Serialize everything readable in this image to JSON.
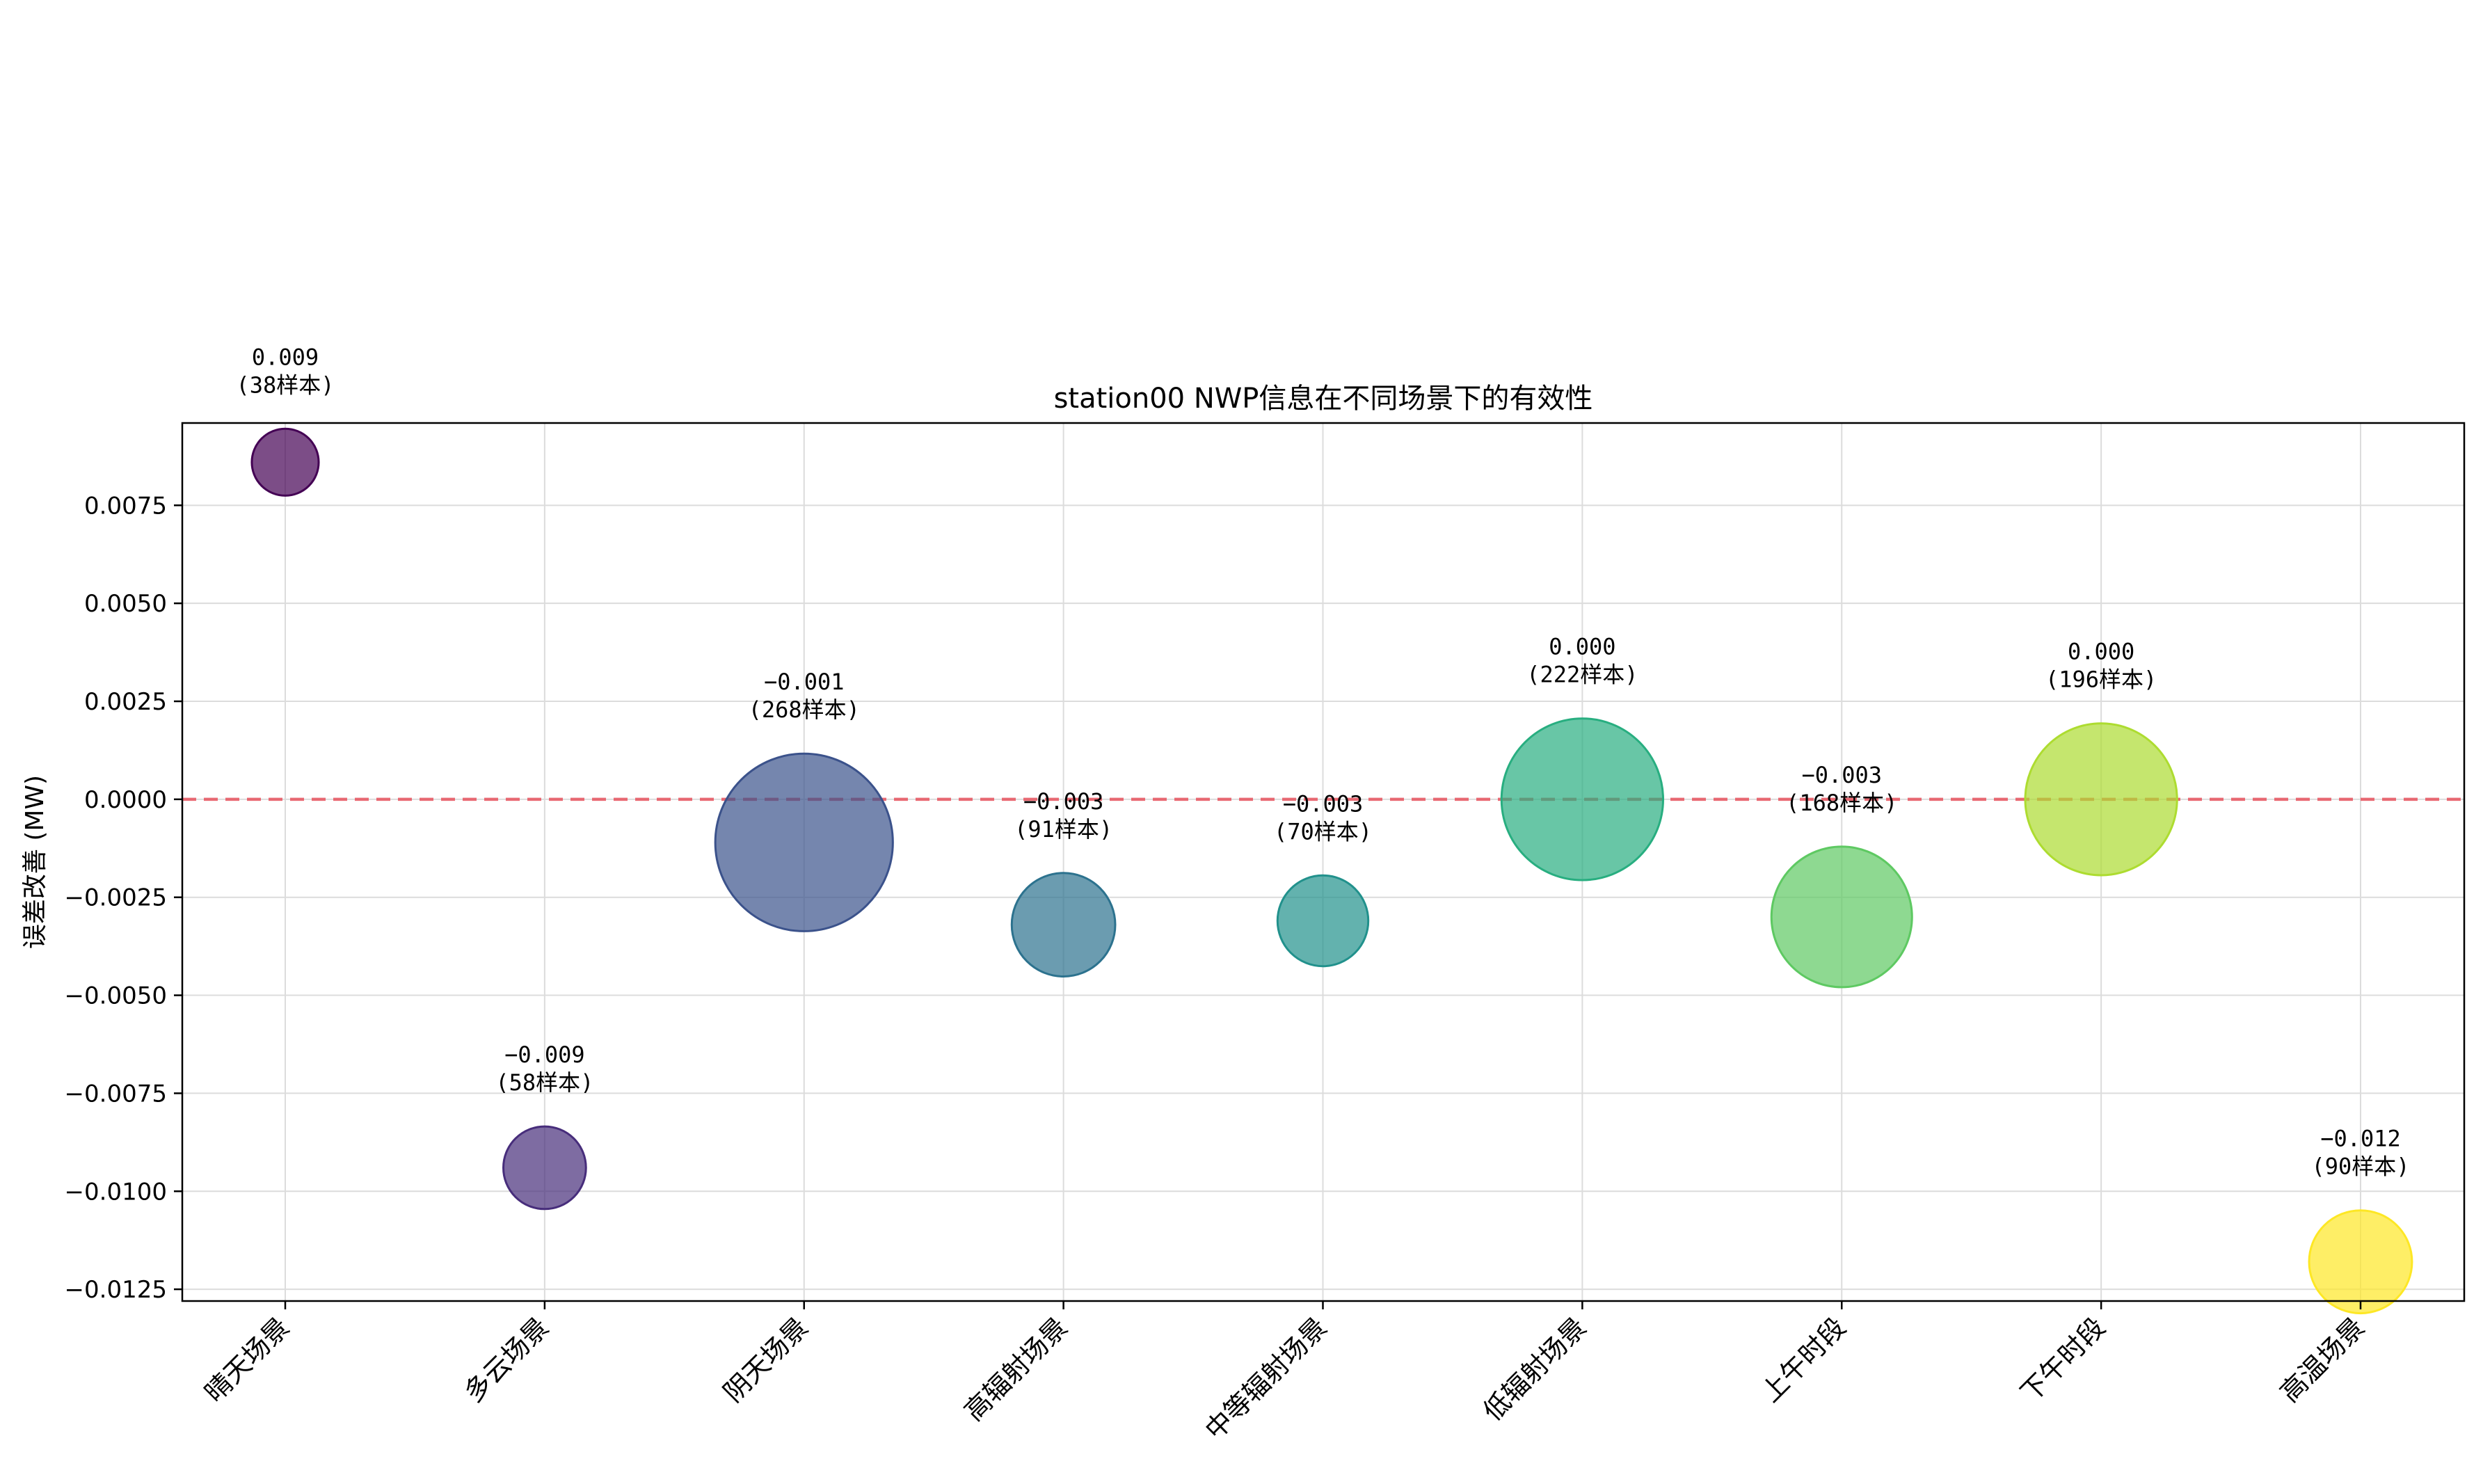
{
  "chart_data": {
    "type": "scatter",
    "title": "station00 NWP信息在不同场景下的有效性",
    "xlabel": "",
    "ylabel": "误差改善 (MW)",
    "ylim": [
      -0.0128,
      0.0096
    ],
    "yticks": [
      0.0075,
      0.005,
      0.0025,
      0.0,
      -0.0025,
      -0.005,
      -0.0075,
      -0.01,
      -0.0125
    ],
    "ytick_labels": [
      "0.0075",
      "0.0050",
      "0.0025",
      "0.0000",
      "−0.0025",
      "−0.0050",
      "−0.0075",
      "−0.0100",
      "−0.0125"
    ],
    "grid": true,
    "reference_line": {
      "y": 0.0,
      "color": "#e8545f",
      "style": "dashed"
    },
    "colormap": "viridis",
    "points": [
      {
        "category": "晴天场景",
        "value": 0.0086,
        "samples": 38,
        "label_value": "0.009",
        "label_samples": "(38样本)",
        "color": "#440154"
      },
      {
        "category": "多云场景",
        "value": -0.0094,
        "samples": 58,
        "label_value": "−0.009",
        "label_samples": "(58样本)",
        "color": "#472d7b"
      },
      {
        "category": "阴天场景",
        "value": -0.0011,
        "samples": 268,
        "label_value": "−0.001",
        "label_samples": "(268样本)",
        "color": "#3b528b"
      },
      {
        "category": "高辐射场景",
        "value": -0.0032,
        "samples": 91,
        "label_value": "−0.003",
        "label_samples": "(91样本)",
        "color": "#2c728e"
      },
      {
        "category": "中等辐射场景",
        "value": -0.0031,
        "samples": 70,
        "label_value": "−0.003",
        "label_samples": "(70样本)",
        "color": "#21918c"
      },
      {
        "category": "低辐射场景",
        "value": 0.0,
        "samples": 222,
        "label_value": "0.000",
        "label_samples": "(222样本)",
        "color": "#28ae80"
      },
      {
        "category": "上午时段",
        "value": -0.003,
        "samples": 168,
        "label_value": "−0.003",
        "label_samples": "(168样本)",
        "color": "#5ec962"
      },
      {
        "category": "下午时段",
        "value": 0.0,
        "samples": 196,
        "label_value": "0.000",
        "label_samples": "(196样本)",
        "color": "#addc30"
      },
      {
        "category": "高温场景",
        "value": -0.0118,
        "samples": 90,
        "label_value": "−0.012",
        "label_samples": "(90样本)",
        "color": "#fde725"
      }
    ]
  }
}
